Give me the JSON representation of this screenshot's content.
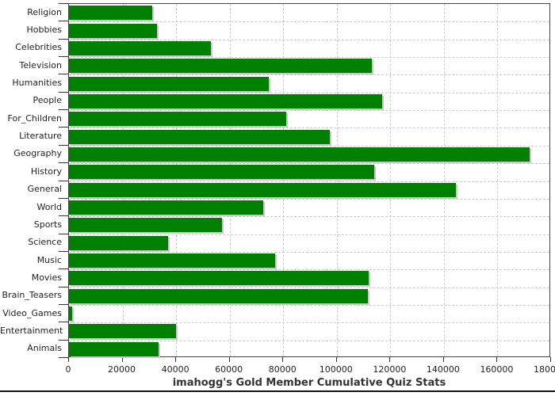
{
  "chart_data": {
    "type": "bar",
    "orientation": "horizontal",
    "title": "imahogg's Gold Member Cumulative Quiz Stats",
    "xlabel": "",
    "ylabel": "",
    "categories": [
      "Religion",
      "Hobbies",
      "Celebrities",
      "Television",
      "Humanities",
      "People",
      "For_Children",
      "Literature",
      "Geography",
      "History",
      "General",
      "World",
      "Sports",
      "Science",
      "Music",
      "Movies",
      "Brain_Teasers",
      "Video_Games",
      "Entertainment",
      "Animals"
    ],
    "values": [
      31000,
      33000,
      53000,
      113000,
      74500,
      117000,
      81000,
      97500,
      172000,
      114000,
      144500,
      72500,
      57000,
      37000,
      77000,
      112000,
      111500,
      1200,
      40000,
      33500
    ],
    "xlim": [
      0,
      180000
    ],
    "xticks": [
      0,
      20000,
      40000,
      60000,
      80000,
      100000,
      120000,
      140000,
      160000,
      180000
    ],
    "grid": "dashed vertical and horizontal",
    "legend": "none",
    "colors": {
      "bar_fill": "#008000",
      "bar_shadow": "#c8c8c8",
      "grid_line": "#cccccc",
      "frame": "#444444",
      "tick_text": "#222222",
      "title_text": "#333333",
      "background": "#ffffff",
      "bottom_divider": "#111111"
    }
  }
}
